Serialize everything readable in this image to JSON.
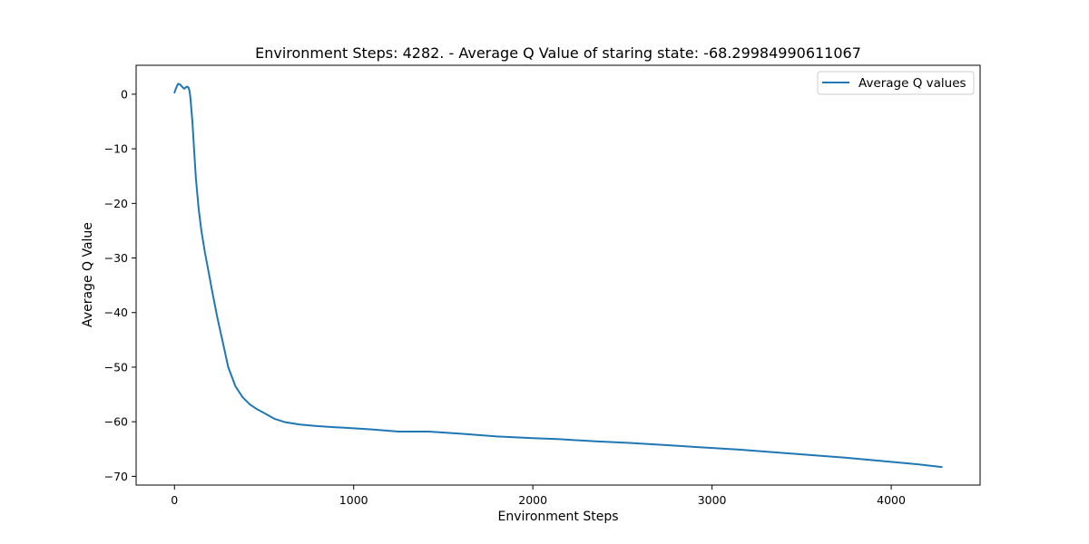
{
  "chart_data": {
    "type": "line",
    "title": "Environment Steps: 4282. - Average Q Value of staring state: -68.29984990611067",
    "xlabel": "Environment Steps",
    "ylabel": "Average Q Value",
    "xlim": [
      -214,
      4496
    ],
    "ylim": [
      -71.6,
      5.3
    ],
    "xticks": [
      0,
      1000,
      2000,
      3000,
      4000
    ],
    "xtick_labels": [
      "0",
      "1000",
      "2000",
      "3000",
      "4000"
    ],
    "yticks": [
      0,
      -10,
      -20,
      -30,
      -40,
      -50,
      -60,
      -70
    ],
    "ytick_labels": [
      "0",
      "−10",
      "−20",
      "−30",
      "−40",
      "−50",
      "−60",
      "−70"
    ],
    "grid": false,
    "legend": {
      "placement": "top-right",
      "entries": [
        "Average Q values"
      ]
    },
    "series": [
      {
        "name": "Average Q values",
        "color": "#1f77b4",
        "x": [
          0,
          10,
          20,
          30,
          45,
          55,
          65,
          72,
          78,
          85,
          90,
          100,
          110,
          120,
          135,
          150,
          170,
          190,
          210,
          240,
          270,
          300,
          340,
          380,
          420,
          460,
          500,
          560,
          620,
          700,
          800,
          900,
          1000,
          1100,
          1250,
          1420,
          1600,
          1800,
          2000,
          2150,
          2350,
          2550,
          2750,
          2950,
          3150,
          3350,
          3550,
          3750,
          3950,
          4150,
          4282
        ],
        "y": [
          0.3,
          1.2,
          1.9,
          1.8,
          1.3,
          1.0,
          1.3,
          1.4,
          1.2,
          0.5,
          -1.0,
          -5.0,
          -10.5,
          -15.5,
          -21.0,
          -25.0,
          -29.0,
          -32.5,
          -36.0,
          -41.0,
          -45.5,
          -50.0,
          -53.5,
          -55.5,
          -56.8,
          -57.7,
          -58.4,
          -59.5,
          -60.1,
          -60.5,
          -60.8,
          -61.0,
          -61.2,
          -61.4,
          -61.8,
          -61.8,
          -62.2,
          -62.7,
          -63.0,
          -63.2,
          -63.6,
          -63.9,
          -64.3,
          -64.7,
          -65.1,
          -65.6,
          -66.1,
          -66.6,
          -67.2,
          -67.8,
          -68.3
        ]
      }
    ]
  }
}
